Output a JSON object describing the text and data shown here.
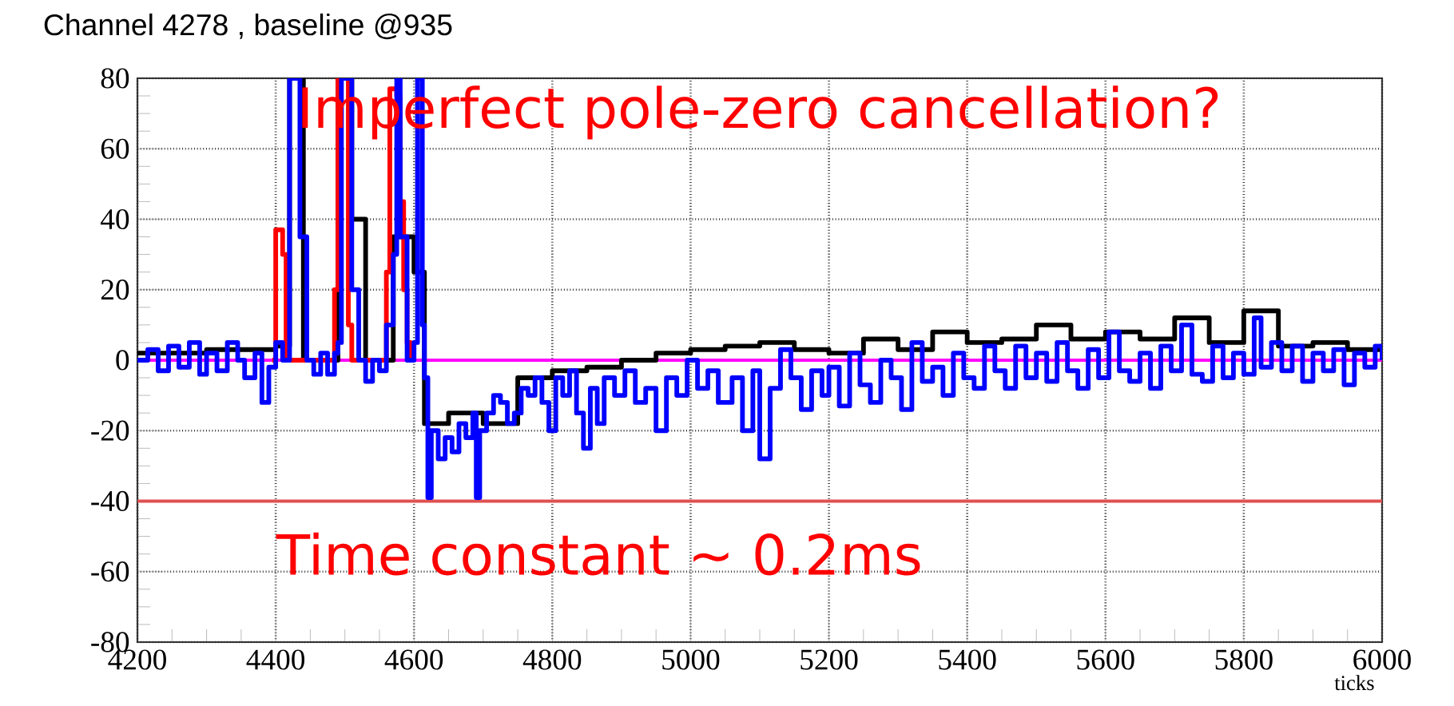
{
  "chart_data": {
    "type": "step",
    "title": "Channel 4278 , baseline @935",
    "xlabel": "ticks",
    "annotations": [
      "Imperfect pole-zero cancellation?",
      "Time constant ~ 0.2ms"
    ],
    "xlim": [
      4200,
      6000
    ],
    "ylim": [
      -80,
      80
    ],
    "xticks": [
      4200,
      4400,
      4600,
      4800,
      5000,
      5200,
      5400,
      5600,
      5800,
      6000
    ],
    "yticks": [
      -80,
      -60,
      -40,
      -20,
      0,
      20,
      40,
      60,
      80
    ],
    "grid": true,
    "line_style": "solid",
    "marker": "none",
    "ref_lines": [
      {
        "axis": "y",
        "value": 0,
        "color": "#ff00ff"
      },
      {
        "axis": "y",
        "value": -40,
        "color": "#e05050"
      }
    ],
    "series": [
      {
        "color": "#000000",
        "x": [
          4200,
          4300,
          4400,
          4420,
          4440,
          4490,
          4510,
          4530,
          4570,
          4600,
          4615,
          4650,
          4700,
          4750,
          4800,
          4850,
          4900,
          4950,
          5000,
          5050,
          5100,
          5150,
          5200,
          5250,
          5300,
          5350,
          5400,
          5450,
          5500,
          5550,
          5600,
          5650,
          5700,
          5750,
          5800,
          5850,
          5900,
          5950,
          6000
        ],
        "values": [
          2,
          3,
          4,
          80,
          0,
          80,
          40,
          0,
          35,
          25,
          -18,
          -15,
          -18,
          -5,
          -3,
          -2,
          0,
          2,
          3,
          4,
          5,
          3,
          2,
          6,
          3,
          8,
          5,
          6,
          10,
          6,
          8,
          6,
          12,
          5,
          14,
          4,
          5,
          3,
          4
        ]
      },
      {
        "color": "#ff0000",
        "x": [
          4395,
          4400,
          4410,
          4415,
          4480,
          4485,
          4490,
          4500,
          4505,
          4510,
          4555,
          4560,
          4565,
          4575,
          4580,
          4585,
          4590,
          4595
        ],
        "values": [
          0,
          37,
          30,
          0,
          0,
          20,
          80,
          80,
          10,
          0,
          0,
          25,
          77,
          75,
          45,
          20,
          5,
          0
        ]
      },
      {
        "color": "#0000ff",
        "x": [
          4200,
          4215,
          4230,
          4245,
          4260,
          4275,
          4290,
          4300,
          4315,
          4330,
          4345,
          4355,
          4370,
          4380,
          4390,
          4400,
          4410,
          4420,
          4430,
          4435,
          4445,
          4455,
          4465,
          4475,
          4485,
          4490,
          4495,
          4505,
          4510,
          4520,
          4530,
          4540,
          4550,
          4560,
          4570,
          4575,
          4580,
          4590,
          4600,
          4605,
          4612,
          4615,
          4620,
          4625,
          4635,
          4645,
          4655,
          4665,
          4675,
          4685,
          4690,
          4695,
          4705,
          4715,
          4725,
          4735,
          4745,
          4755,
          4765,
          4775,
          4785,
          4795,
          4805,
          4815,
          4825,
          4835,
          4845,
          4855,
          4865,
          4875,
          4890,
          4905,
          4920,
          4935,
          4950,
          4965,
          4980,
          4995,
          5010,
          5025,
          5040,
          5060,
          5075,
          5090,
          5100,
          5115,
          5130,
          5145,
          5160,
          5175,
          5190,
          5200,
          5215,
          5230,
          5245,
          5260,
          5275,
          5290,
          5305,
          5320,
          5335,
          5350,
          5365,
          5380,
          5395,
          5410,
          5425,
          5440,
          5455,
          5470,
          5485,
          5500,
          5515,
          5530,
          5545,
          5560,
          5575,
          5590,
          5605,
          5620,
          5635,
          5650,
          5665,
          5680,
          5695,
          5710,
          5725,
          5740,
          5755,
          5770,
          5785,
          5800,
          5815,
          5825,
          5840,
          5855,
          5870,
          5885,
          5900,
          5915,
          5930,
          5945,
          5960,
          5975,
          5990,
          6000
        ],
        "values": [
          0,
          3,
          -3,
          4,
          -2,
          5,
          -4,
          2,
          -3,
          5,
          0,
          -5,
          2,
          -12,
          -2,
          5,
          0,
          80,
          80,
          35,
          0,
          -4,
          2,
          -4,
          2,
          5,
          80,
          80,
          20,
          0,
          -6,
          0,
          -3,
          10,
          30,
          80,
          35,
          0,
          5,
          80,
          10,
          -5,
          -39,
          -20,
          -28,
          -22,
          -26,
          -18,
          -22,
          -15,
          -39,
          -20,
          -15,
          -10,
          -12,
          -18,
          -15,
          -8,
          -10,
          -5,
          -12,
          -20,
          -5,
          -10,
          -3,
          -15,
          -25,
          -8,
          -18,
          -5,
          -10,
          -3,
          -12,
          -8,
          -20,
          -5,
          -10,
          0,
          -8,
          -3,
          -12,
          -5,
          -20,
          -3,
          -28,
          -8,
          3,
          -5,
          -14,
          -3,
          -10,
          -2,
          -13,
          2,
          -7,
          -12,
          0,
          -5,
          -14,
          5,
          -6,
          -2,
          -10,
          2,
          -5,
          -8,
          4,
          -3,
          -8,
          4,
          -5,
          2,
          -6,
          5,
          -3,
          -8,
          3,
          -5,
          8,
          -3,
          -6,
          2,
          -8,
          4,
          -3,
          10,
          -4,
          -6,
          4,
          -5,
          2,
          -4,
          12,
          -2,
          5,
          -3,
          4,
          -6,
          2,
          -3,
          3,
          -7,
          2,
          -2,
          4,
          0
        ]
      }
    ]
  }
}
